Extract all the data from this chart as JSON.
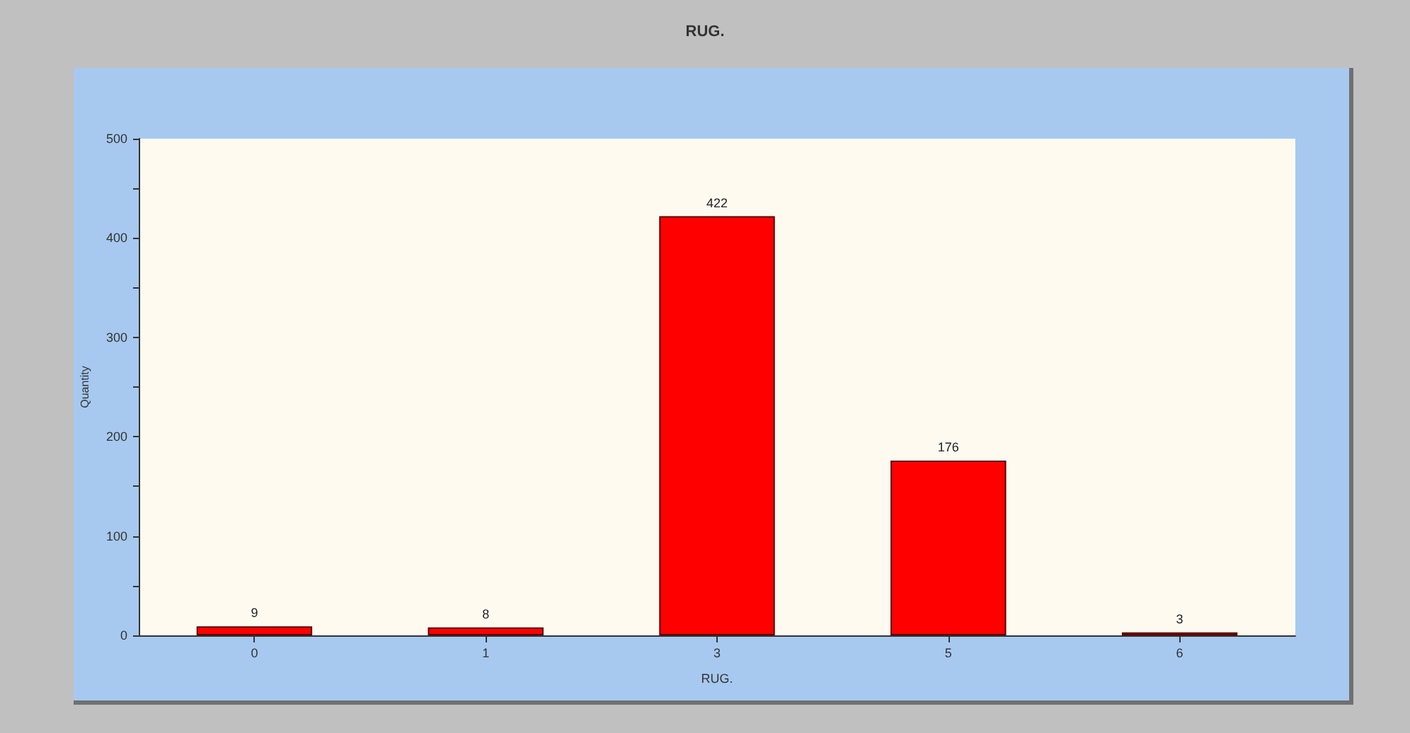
{
  "chart_data": {
    "type": "bar",
    "title": "RUG.",
    "xlabel": "RUG.",
    "ylabel": "Quantity",
    "categories": [
      "0",
      "1",
      "3",
      "5",
      "6"
    ],
    "values": [
      9,
      8,
      422,
      176,
      3
    ],
    "color": "#ff0000",
    "ylim": [
      0,
      500
    ],
    "yticks": [
      0,
      {
        "value": 50,
        "label": null
      },
      100,
      {
        "value": 150,
        "label": null
      },
      200,
      {
        "value": 250,
        "label": null
      },
      300,
      {
        "value": 350,
        "label": null
      },
      400,
      {
        "value": 450,
        "label": null
      },
      500
    ],
    "data_labels": true
  }
}
